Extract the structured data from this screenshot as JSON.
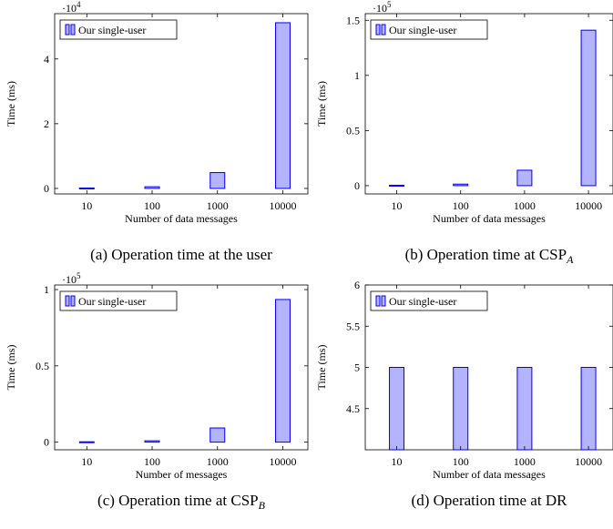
{
  "colors": {
    "bar_fill": "#b3b3ff",
    "bar_stroke": "#0000ff",
    "axis": "#000000"
  },
  "legend_label": "Our single-user",
  "chart_data": [
    {
      "type": "bar",
      "categories": [
        "10",
        "100",
        "1000",
        "10000"
      ],
      "series": [
        {
          "name": "Our single-user",
          "values": [
            130,
            520,
            4900,
            51200
          ]
        }
      ],
      "ylabel": "Time (ms)",
      "xlabel": "Number of data messages",
      "ylim": [
        -1700,
        54000
      ],
      "yticks": [
        0,
        2,
        4
      ],
      "ytick_multiplier": 10000,
      "multiplier_label": "·10",
      "multiplier_exp": "4",
      "caption_text": "(a) Operation time at the user",
      "caption_sub": ""
    },
    {
      "type": "bar",
      "categories": [
        "10",
        "100",
        "1000",
        "10000"
      ],
      "series": [
        {
          "name": "Our single-user",
          "values": [
            400,
            1400,
            14000,
            141000
          ]
        }
      ],
      "ylabel": "Time (ms)",
      "xlabel": "Number of data messages",
      "ylim": [
        -7500,
        156000
      ],
      "yticks": [
        0,
        0.5,
        1,
        1.5
      ],
      "ytick_multiplier": 100000,
      "multiplier_label": "·10",
      "multiplier_exp": "5",
      "caption_text": "(b) Operation time at CSP",
      "caption_sub": "A"
    },
    {
      "type": "bar",
      "categories": [
        "10",
        "100",
        "1000",
        "10000"
      ],
      "series": [
        {
          "name": "Our single-user",
          "values": [
            250,
            900,
            9300,
            93500
          ]
        }
      ],
      "ylabel": "Time (ms)",
      "xlabel": "Number of messages",
      "ylim": [
        -5000,
        103000
      ],
      "yticks": [
        0,
        0.5,
        1
      ],
      "ytick_multiplier": 100000,
      "multiplier_label": "·10",
      "multiplier_exp": "5",
      "caption_text": "(c) Operation time at CSP",
      "caption_sub": "B"
    },
    {
      "type": "bar",
      "categories": [
        "10",
        "100",
        "1000",
        "10000"
      ],
      "series": [
        {
          "name": "Our single-user",
          "values": [
            5,
            5,
            5,
            5
          ]
        }
      ],
      "ylabel": "Time (ms)",
      "xlabel": "Number of data messages",
      "ylim": [
        4,
        6
      ],
      "yticks": [
        4.5,
        5,
        5.5,
        6
      ],
      "ytick_multiplier": 1,
      "multiplier_label": "",
      "multiplier_exp": "",
      "caption_text": "(d) Operation time at DR",
      "caption_sub": ""
    }
  ]
}
